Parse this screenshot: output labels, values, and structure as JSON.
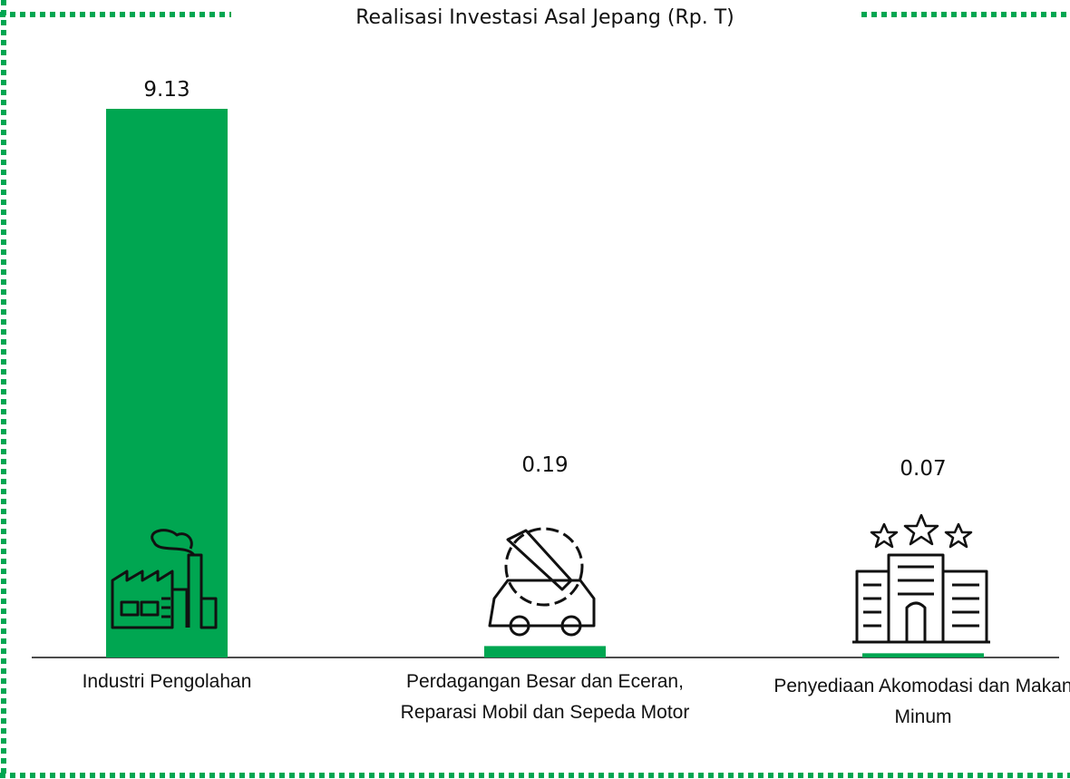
{
  "chart_data": {
    "type": "bar",
    "title": "Realisasi Investasi Asal Jepang (Rp. T)",
    "categories": [
      "Industri Pengolahan",
      "Perdagangan Besar dan Eceran, Reparasi Mobil dan Sepeda Motor",
      "Penyediaan Akomodasi dan Makan Minum"
    ],
    "values": [
      9.13,
      0.19,
      0.07
    ],
    "color": "#00a651"
  }
}
